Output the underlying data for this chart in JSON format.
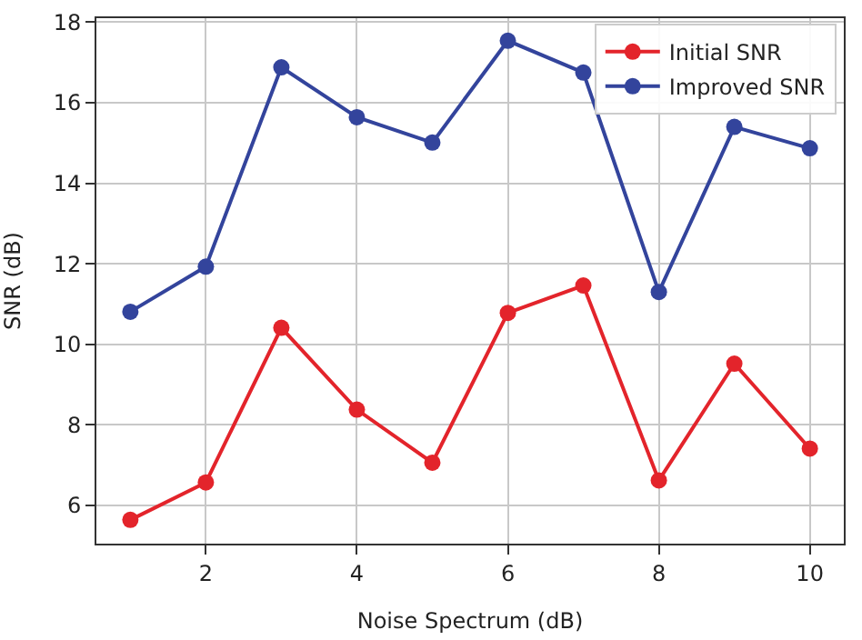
{
  "chart_data": {
    "type": "line",
    "xlabel": "Noise Spectrum (dB)",
    "ylabel": "SNR (dB)",
    "x": [
      1,
      2,
      3,
      4,
      5,
      6,
      7,
      8,
      9,
      10
    ],
    "series": [
      {
        "name": "Initial SNR",
        "color": "#e3242b",
        "values": [
          5.64,
          6.57,
          10.41,
          8.38,
          7.06,
          10.78,
          11.46,
          6.62,
          9.52,
          7.41
        ]
      },
      {
        "name": "Improved SNR",
        "color": "#33449c",
        "values": [
          10.81,
          11.93,
          16.88,
          15.64,
          15.01,
          17.54,
          16.75,
          11.3,
          15.4,
          14.87
        ]
      }
    ],
    "xlim": [
      0.55,
      10.45
    ],
    "ylim": [
      5.05,
      18.1
    ],
    "xticks": [
      2,
      4,
      6,
      8,
      10
    ],
    "yticks": [
      6,
      8,
      10,
      12,
      14,
      16,
      18
    ],
    "grid": true,
    "legend": "top right",
    "marker": "circle",
    "line_style": "solid"
  }
}
